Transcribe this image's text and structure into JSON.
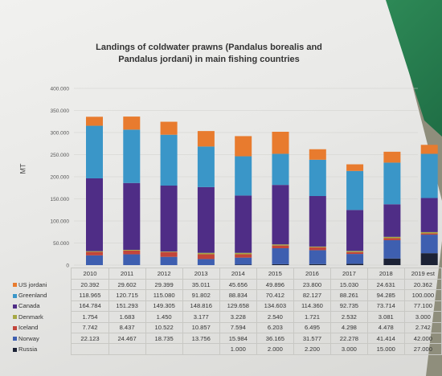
{
  "chart_data": {
    "type": "bar",
    "stacked": true,
    "title": "Landings of coldwater prawns (Pandalus borealis and Pandalus jordani) in main fishing countries",
    "ylabel": "MT",
    "ylim": [
      0,
      400000
    ],
    "yticks": [
      "0",
      "50.000",
      "100.000",
      "150.000",
      "200.000",
      "250.000",
      "300.000",
      "350.000",
      "400.000"
    ],
    "categories": [
      "2010",
      "2011",
      "2012",
      "2013",
      "2014",
      "2015",
      "2016",
      "2017",
      "2018",
      "2019 est"
    ],
    "series": [
      {
        "name": "Russia",
        "color": "#1c2235",
        "values": [
          null,
          null,
          null,
          null,
          1000,
          2000,
          2200,
          3000,
          15000,
          27000
        ],
        "labels": [
          "",
          "",
          "",
          "",
          "1.000",
          "2.000",
          "2.200",
          "3.000",
          "15.000",
          "27.000"
        ]
      },
      {
        "name": "Norway",
        "color": "#3e5fb0",
        "values": [
          22123,
          24467,
          18735,
          13756,
          15984,
          36165,
          31577,
          22278,
          41414,
          42000
        ],
        "labels": [
          "22.123",
          "24.467",
          "18.735",
          "13.756",
          "15.984",
          "36.165",
          "31.577",
          "22.278",
          "41.414",
          "42.000"
        ]
      },
      {
        "name": "Iceland",
        "color": "#c2453a",
        "values": [
          7742,
          8437,
          10522,
          10857,
          7594,
          6203,
          6495,
          4298,
          4478,
          2742
        ],
        "labels": [
          "7.742",
          "8.437",
          "10.522",
          "10.857",
          "7.594",
          "6.203",
          "6.495",
          "4.298",
          "4.478",
          "2.742"
        ]
      },
      {
        "name": "Denmark",
        "color": "#a6a845",
        "values": [
          1754,
          1683,
          1450,
          3177,
          3228,
          2540,
          1721,
          2532,
          3081,
          3000
        ],
        "labels": [
          "1.754",
          "1.683",
          "1.450",
          "3.177",
          "3.228",
          "2.540",
          "1.721",
          "2.532",
          "3.081",
          "3.000"
        ]
      },
      {
        "name": "Canada",
        "color": "#4f2d86",
        "values": [
          164784,
          151293,
          149305,
          148816,
          129658,
          134603,
          114360,
          92735,
          73714,
          77100
        ],
        "labels": [
          "164.784",
          "151.293",
          "149.305",
          "148.816",
          "129.658",
          "134.603",
          "114.360",
          "92.735",
          "73.714",
          "77.100"
        ]
      },
      {
        "name": "Greenland",
        "color": "#3a96c8",
        "values": [
          118965,
          120715,
          115080,
          91802,
          88834,
          70412,
          82127,
          88261,
          94285,
          100000
        ],
        "labels": [
          "118.965",
          "120.715",
          "115.080",
          "91.802",
          "88.834",
          "70.412",
          "82.127",
          "88.261",
          "94.285",
          "100.000"
        ]
      },
      {
        "name": "US jordani",
        "color": "#e87b2e",
        "values": [
          20392,
          29602,
          29399,
          35011,
          45656,
          49896,
          23800,
          15030,
          24631,
          20362
        ],
        "labels": [
          "20.392",
          "29.602",
          "29.399",
          "35.011",
          "45.656",
          "49.896",
          "23.800",
          "15.030",
          "24.631",
          "20.362"
        ]
      }
    ],
    "table_row_order": [
      "US jordani",
      "Greenland",
      "Canada",
      "Denmark",
      "Iceland",
      "Norway",
      "Russia"
    ]
  }
}
